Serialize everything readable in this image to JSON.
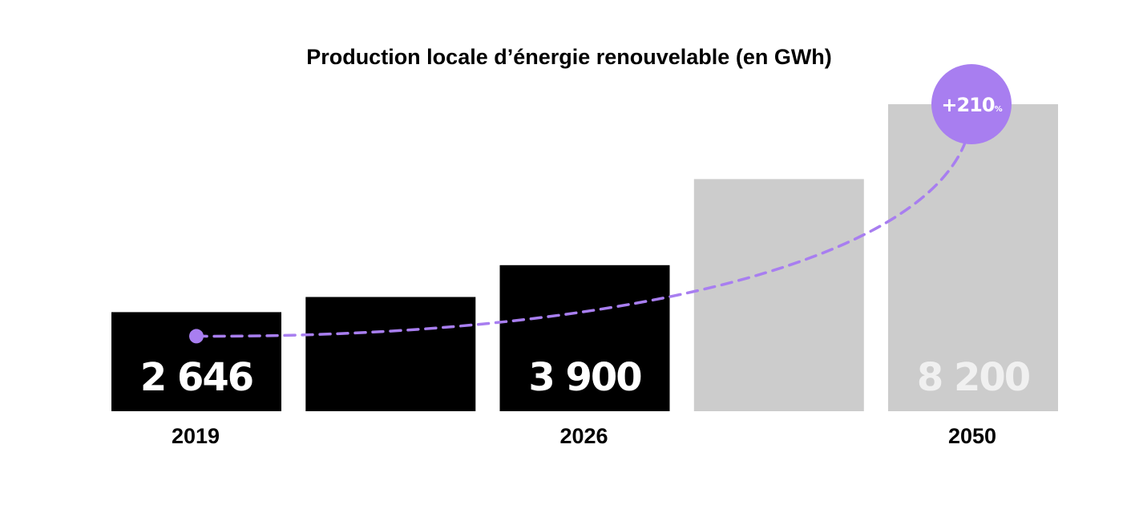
{
  "chart_data": {
    "type": "bar",
    "title": "Production locale d’énergie renouvelable (en GWh)",
    "categories": [
      "2019",
      "",
      "2026",
      "",
      "2050"
    ],
    "series": [
      {
        "values": [
          2646,
          3050,
          3900,
          6200,
          8200
        ],
        "colors": [
          "#000000",
          "#000000",
          "#000000",
          "#cccccc",
          "#cccccc"
        ]
      }
    ],
    "data_labels": [
      "2 646",
      "",
      "3 900",
      "",
      "8 200"
    ],
    "label_colors": [
      "#ffffff",
      "#ffffff",
      "#ffffff",
      "#ffffff",
      "#f0f0f0"
    ],
    "ylim": [
      0,
      8200
    ],
    "grid": false,
    "trend": {
      "color": "#a87ef0",
      "style": "dashed"
    },
    "badge": {
      "value": "+210",
      "unit": "%",
      "color": "#a87ef0"
    }
  }
}
